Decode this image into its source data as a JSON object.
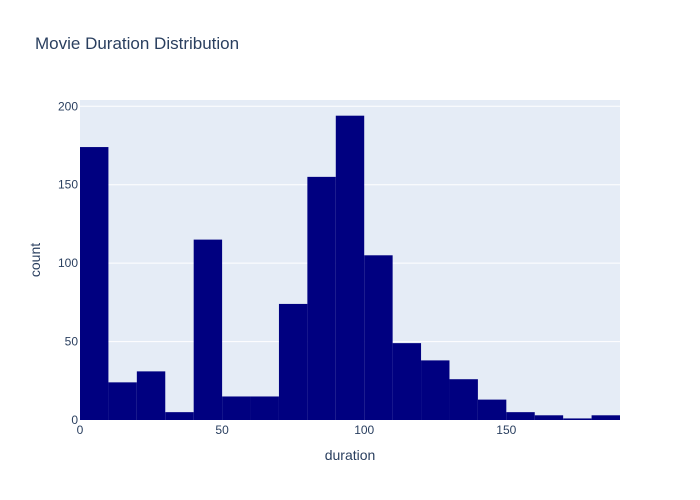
{
  "chart_data": {
    "type": "bar",
    "title": "Movie Duration Distribution",
    "xlabel": "duration",
    "ylabel": "count",
    "bin_edges": [
      0,
      10,
      20,
      30,
      40,
      50,
      60,
      70,
      80,
      90,
      100,
      110,
      120,
      130,
      140,
      150,
      160,
      170,
      180,
      190
    ],
    "values": [
      174,
      24,
      31,
      5,
      115,
      15,
      15,
      74,
      155,
      194,
      105,
      49,
      38,
      26,
      13,
      5,
      3,
      1,
      3
    ],
    "xlim": [
      0,
      190
    ],
    "ylim": [
      0,
      204
    ],
    "x_ticks": [
      0,
      50,
      100,
      150
    ],
    "x_tick_labels": [
      "0",
      "50",
      "100",
      "150"
    ],
    "y_ticks": [
      0,
      50,
      100,
      150,
      200
    ],
    "y_tick_labels": [
      "0",
      "50",
      "100",
      "150",
      "200"
    ],
    "grid": true,
    "colors": {
      "bar": "#000080",
      "plot_bg": "#e5ecf6",
      "grid": "#ffffff",
      "text": "#2a3f5f"
    }
  }
}
